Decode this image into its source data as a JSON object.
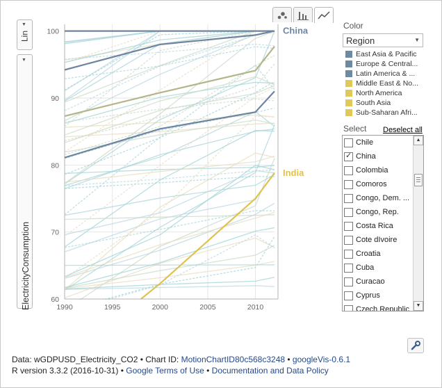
{
  "view_tabs": [
    {
      "name": "bubble-chart",
      "icon": "bubble-chart-icon",
      "active": false
    },
    {
      "name": "bar-chart",
      "icon": "bar-chart-icon",
      "active": false
    },
    {
      "name": "line-chart",
      "icon": "line-chart-icon",
      "active": true
    }
  ],
  "y_axis": {
    "scale": "Lin",
    "variable": "ElectricityConsumption"
  },
  "color_panel": {
    "title": "Color",
    "selected": "Region",
    "legend": [
      {
        "label": "East Asia & Pacific",
        "color": "#6d8aa3"
      },
      {
        "label": "Europe & Central...",
        "color": "#6d8aa3"
      },
      {
        "label": "Latin America & ...",
        "color": "#6d8aa3"
      },
      {
        "label": "Middle East & No...",
        "color": "#e1c85a"
      },
      {
        "label": "North America",
        "color": "#e1c85a"
      },
      {
        "label": "South Asia",
        "color": "#e1c85a"
      },
      {
        "label": "Sub-Saharan Afri...",
        "color": "#e1c85a"
      }
    ]
  },
  "select_panel": {
    "title": "Select",
    "deselect_label": "Deselect all",
    "items": [
      {
        "label": "Chile",
        "checked": false
      },
      {
        "label": "China",
        "checked": true
      },
      {
        "label": "Colombia",
        "checked": false
      },
      {
        "label": "Comoros",
        "checked": false
      },
      {
        "label": "Congo, Dem. ...",
        "checked": false
      },
      {
        "label": "Congo, Rep.",
        "checked": false
      },
      {
        "label": "Costa Rica",
        "checked": false
      },
      {
        "label": "Cote dIvoire",
        "checked": false
      },
      {
        "label": "Croatia",
        "checked": false
      },
      {
        "label": "Cuba",
        "checked": false
      },
      {
        "label": "Curacao",
        "checked": false
      },
      {
        "label": "Cyprus",
        "checked": false
      },
      {
        "label": "Czech Republic",
        "checked": false
      }
    ]
  },
  "chart_data": {
    "type": "line",
    "xlabel": "",
    "ylabel": "ElectricityConsumption",
    "xlim": [
      1990,
      2012
    ],
    "ylim": [
      60,
      101
    ],
    "x_ticks": [
      1990,
      1995,
      2000,
      2005,
      2010
    ],
    "y_ticks": [
      60,
      70,
      80,
      90,
      100
    ],
    "grid": true,
    "highlighted_series": [
      {
        "name": "China",
        "color": "#6d85a0",
        "x": [
          1990,
          2000,
          2010,
          2012
        ],
        "y": [
          94.2,
          98.0,
          99.4,
          100
        ]
      },
      {
        "name": "",
        "color": "#6d85a0",
        "x": [
          1990,
          2000,
          2010,
          2012
        ],
        "y": [
          100,
          100,
          100,
          100
        ]
      },
      {
        "name": "",
        "color": "#6d85a0",
        "x": [
          1990,
          2000,
          2010,
          2012
        ],
        "y": [
          81.1,
          85.4,
          87.9,
          91.0
        ]
      },
      {
        "name": "",
        "color": "#b5b58a",
        "x": [
          1990,
          2000,
          2010,
          2012
        ],
        "y": [
          87.3,
          90.8,
          94.1,
          97.7
        ]
      },
      {
        "name": "India",
        "color": "#e0c250",
        "x": [
          1998,
          2000,
          2010,
          2012
        ],
        "y": [
          60,
          62.3,
          75.0,
          78.8
        ]
      }
    ],
    "background_series_count": 60
  },
  "footer": {
    "line1": [
      {
        "text": "Data: wGDPUSD_Electricity_CO2 • Chart ID: ",
        "link": false
      },
      {
        "text": "MotionChartID80c568c3248",
        "link": true
      },
      {
        "text": " • ",
        "link": false
      },
      {
        "text": "googleVis-0.6.1",
        "link": true
      }
    ],
    "line2": [
      {
        "text": "R version 3.3.2 (2016-10-31) • ",
        "link": false
      },
      {
        "text": "Google Terms of Use",
        "link": true
      },
      {
        "text": " • ",
        "link": false
      },
      {
        "text": "Documentation and Data Policy",
        "link": true
      }
    ]
  }
}
